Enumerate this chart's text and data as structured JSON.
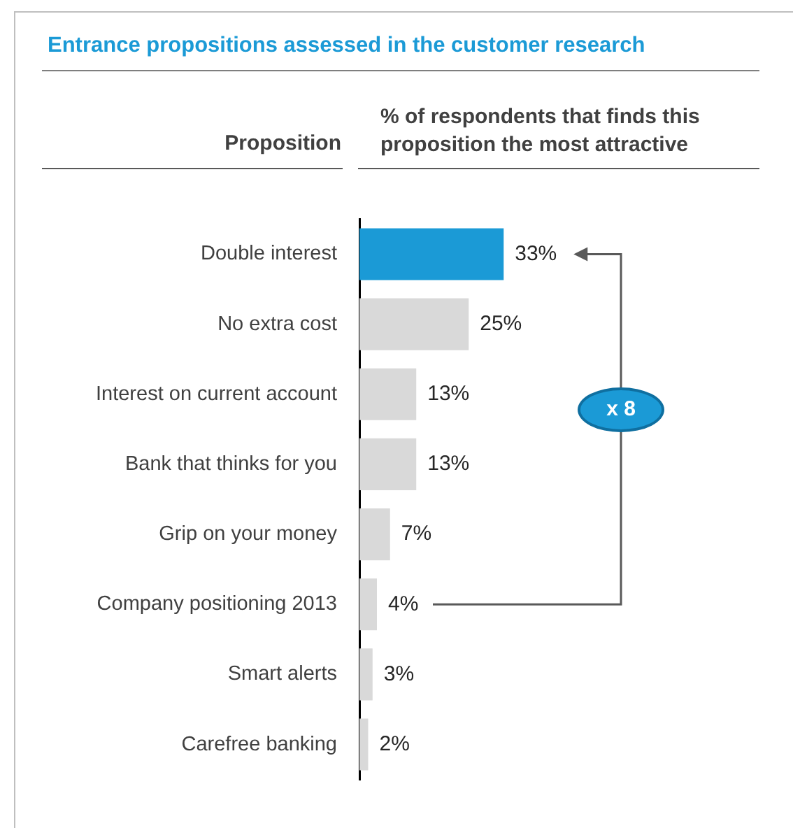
{
  "chart_data": {
    "type": "bar",
    "orientation": "horizontal",
    "title": "Entrance propositions assessed in the customer research",
    "ylabel": "Proposition",
    "xlabel": "% of respondents that finds this proposition the most attractive",
    "categories": [
      "Double interest",
      "No extra cost",
      "Interest on current account",
      "Bank that thinks for you",
      "Grip on your money",
      "Company positioning 2013",
      "Smart alerts",
      "Carefree banking"
    ],
    "values": [
      33,
      25,
      13,
      13,
      7,
      4,
      3,
      2
    ],
    "colors": [
      "#1b9ad6",
      "#d9d9d9",
      "#d9d9d9",
      "#d9d9d9",
      "#d9d9d9",
      "#d9d9d9",
      "#d9d9d9",
      "#d9d9d9"
    ],
    "value_labels": [
      "33%",
      "25%",
      "13%",
      "13%",
      "7%",
      "4%",
      "3%",
      "2%"
    ],
    "annotations": [
      "x 8"
    ],
    "legend": false
  }
}
